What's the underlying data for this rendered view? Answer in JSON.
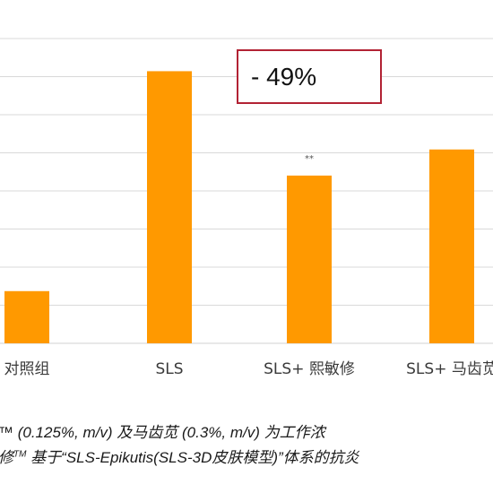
{
  "chart_data": {
    "type": "bar",
    "categories": [
      "对照组",
      "SLS",
      "SLS+ 熙敏修",
      "SLS+ 马齿苋"
    ],
    "values": [
      14,
      73,
      45,
      52
    ],
    "ylim": [
      0,
      82
    ],
    "grid": true,
    "bar_color": "#ff9900",
    "annotations": [
      {
        "category": "SLS+ 熙敏修",
        "text": "**"
      }
    ]
  },
  "callout": {
    "text": "- 49%",
    "border_color": "#b22234"
  },
  "caption": {
    "line1_pre": "™",
    "line1_text": " (0.125%, m/v) 及马齿苋 (0.3%, m/v) 为工作浓",
    "line2_pre": "修",
    "line2_sup": "TM",
    "line2_text": " 基于“SLS-Epikutis(SLS-3D皮肤模型)”体系的抗炎"
  }
}
